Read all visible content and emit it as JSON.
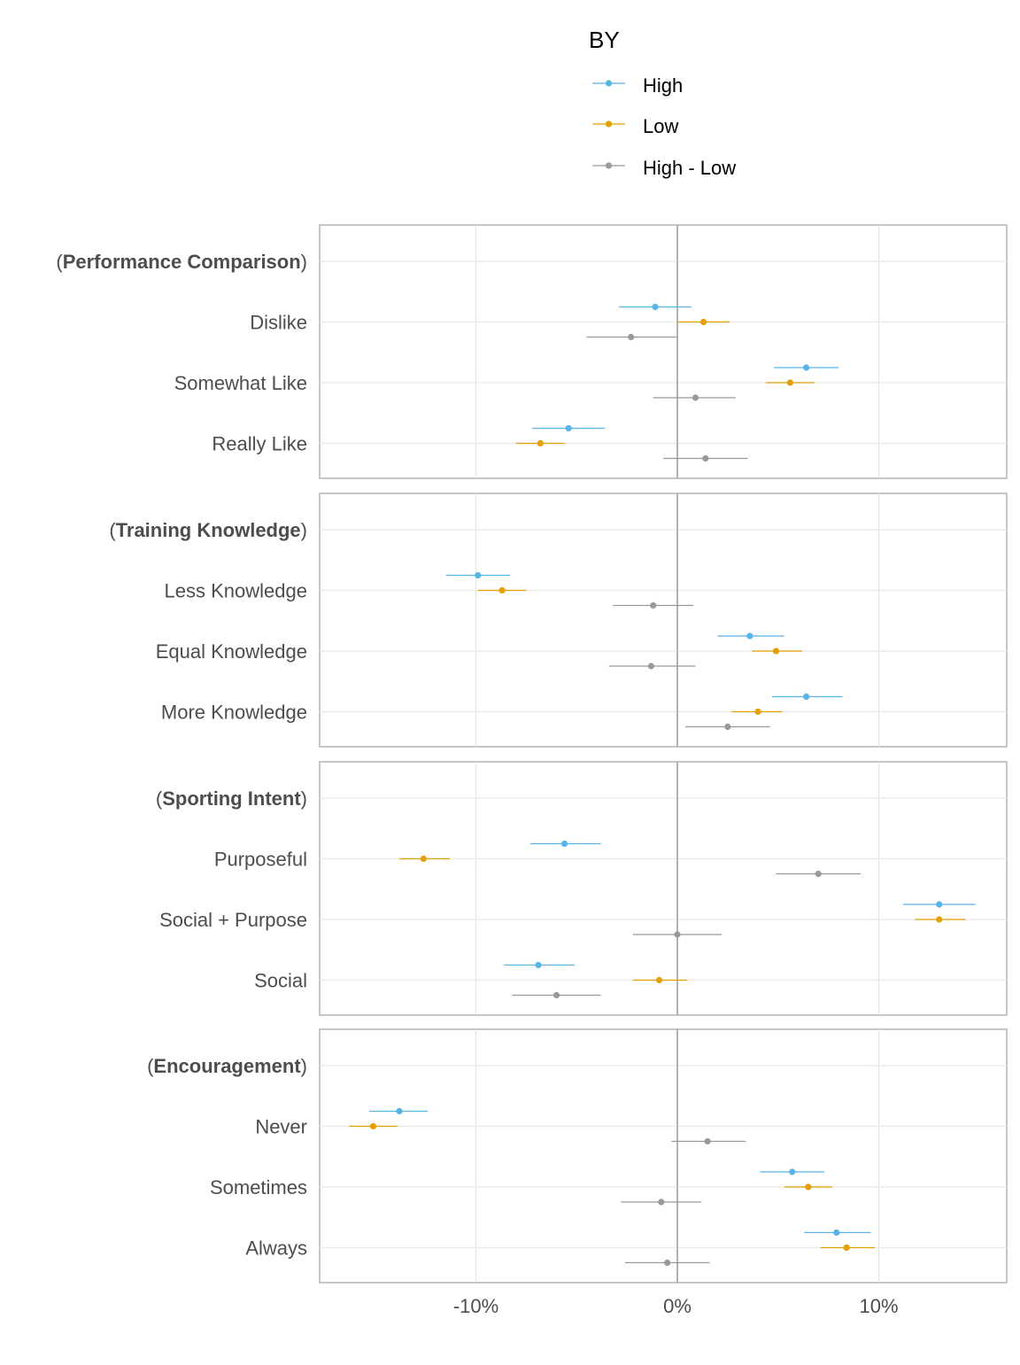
{
  "chart_data": {
    "type": "scatter",
    "subtype": "point-range (estimate with interval), faceted by attribute group",
    "legend": {
      "title": "BY",
      "placement": "top-center",
      "entries": [
        {
          "label": "High",
          "color": "#56B4E9"
        },
        {
          "label": "Low",
          "color": "#E69F00"
        },
        {
          "label": "High - Low",
          "color": "#999999"
        }
      ]
    },
    "x_axis": {
      "label": "",
      "range": [
        -18,
        16
      ],
      "ticks": [
        -10,
        0,
        10
      ],
      "tick_labels": [
        "-10%",
        "0%",
        "10%"
      ]
    },
    "grid": true,
    "series_order": [
      "High",
      "Low",
      "High - Low"
    ],
    "panels": [
      {
        "title_open": "(",
        "title": "Performance Comparison",
        "title_close": ")",
        "levels": [
          {
            "label": "Dislike",
            "points": [
              {
                "series": "High",
                "value": -1.1,
                "lower": -2.9,
                "upper": 0.7
              },
              {
                "series": "Low",
                "value": 1.3,
                "lower": 0.0,
                "upper": 2.6
              },
              {
                "series": "High - Low",
                "value": -2.3,
                "lower": -4.5,
                "upper": 0.0
              }
            ]
          },
          {
            "label": "Somewhat Like",
            "points": [
              {
                "series": "High",
                "value": 6.4,
                "lower": 4.8,
                "upper": 8.0
              },
              {
                "series": "Low",
                "value": 5.6,
                "lower": 4.4,
                "upper": 6.8
              },
              {
                "series": "High - Low",
                "value": 0.9,
                "lower": -1.2,
                "upper": 2.9
              }
            ]
          },
          {
            "label": "Really Like",
            "points": [
              {
                "series": "High",
                "value": -5.4,
                "lower": -7.2,
                "upper": -3.6
              },
              {
                "series": "Low",
                "value": -6.8,
                "lower": -8.0,
                "upper": -5.6
              },
              {
                "series": "High - Low",
                "value": 1.4,
                "lower": -0.7,
                "upper": 3.5
              }
            ]
          }
        ]
      },
      {
        "title_open": "(",
        "title": "Training Knowledge",
        "title_close": ")",
        "levels": [
          {
            "label": "Less Knowledge",
            "points": [
              {
                "series": "High",
                "value": -9.9,
                "lower": -11.5,
                "upper": -8.3
              },
              {
                "series": "Low",
                "value": -8.7,
                "lower": -9.9,
                "upper": -7.5
              },
              {
                "series": "High - Low",
                "value": -1.2,
                "lower": -3.2,
                "upper": 0.8
              }
            ]
          },
          {
            "label": "Equal Knowledge",
            "points": [
              {
                "series": "High",
                "value": 3.6,
                "lower": 2.0,
                "upper": 5.3
              },
              {
                "series": "Low",
                "value": 4.9,
                "lower": 3.7,
                "upper": 6.2
              },
              {
                "series": "High - Low",
                "value": -1.3,
                "lower": -3.4,
                "upper": 0.9
              }
            ]
          },
          {
            "label": "More Knowledge",
            "points": [
              {
                "series": "High",
                "value": 6.4,
                "lower": 4.7,
                "upper": 8.2
              },
              {
                "series": "Low",
                "value": 4.0,
                "lower": 2.7,
                "upper": 5.2
              },
              {
                "series": "High - Low",
                "value": 2.5,
                "lower": 0.4,
                "upper": 4.6
              }
            ]
          }
        ]
      },
      {
        "title_open": "(",
        "title": "Sporting Intent",
        "title_close": ")",
        "levels": [
          {
            "label": "Purposeful",
            "points": [
              {
                "series": "High",
                "value": -5.6,
                "lower": -7.3,
                "upper": -3.8
              },
              {
                "series": "Low",
                "value": -12.6,
                "lower": -13.8,
                "upper": -11.3
              },
              {
                "series": "High - Low",
                "value": 7.0,
                "lower": 4.9,
                "upper": 9.1
              }
            ]
          },
          {
            "label": "Social + Purpose",
            "points": [
              {
                "series": "High",
                "value": 13.0,
                "lower": 11.2,
                "upper": 14.8
              },
              {
                "series": "Low",
                "value": 13.0,
                "lower": 11.8,
                "upper": 14.3
              },
              {
                "series": "High - Low",
                "value": 0.0,
                "lower": -2.2,
                "upper": 2.2
              }
            ]
          },
          {
            "label": "Social",
            "points": [
              {
                "series": "High",
                "value": -6.9,
                "lower": -8.6,
                "upper": -5.1
              },
              {
                "series": "Low",
                "value": -0.9,
                "lower": -2.2,
                "upper": 0.5
              },
              {
                "series": "High - Low",
                "value": -6.0,
                "lower": -8.2,
                "upper": -3.8
              }
            ]
          }
        ]
      },
      {
        "title_open": "(",
        "title": "Encouragement",
        "title_close": ")",
        "levels": [
          {
            "label": "Never",
            "points": [
              {
                "series": "High",
                "value": -13.8,
                "lower": -15.3,
                "upper": -12.4
              },
              {
                "series": "Low",
                "value": -15.1,
                "lower": -16.3,
                "upper": -13.9
              },
              {
                "series": "High - Low",
                "value": 1.5,
                "lower": -0.3,
                "upper": 3.4
              }
            ]
          },
          {
            "label": "Sometimes",
            "points": [
              {
                "series": "High",
                "value": 5.7,
                "lower": 4.1,
                "upper": 7.3
              },
              {
                "series": "Low",
                "value": 6.5,
                "lower": 5.3,
                "upper": 7.7
              },
              {
                "series": "High - Low",
                "value": -0.8,
                "lower": -2.8,
                "upper": 1.2
              }
            ]
          },
          {
            "label": "Always",
            "points": [
              {
                "series": "High",
                "value": 7.9,
                "lower": 6.3,
                "upper": 9.6
              },
              {
                "series": "Low",
                "value": 8.4,
                "lower": 7.1,
                "upper": 9.8
              },
              {
                "series": "High - Low",
                "value": -0.5,
                "lower": -2.6,
                "upper": 1.6
              }
            ]
          }
        ]
      }
    ]
  }
}
